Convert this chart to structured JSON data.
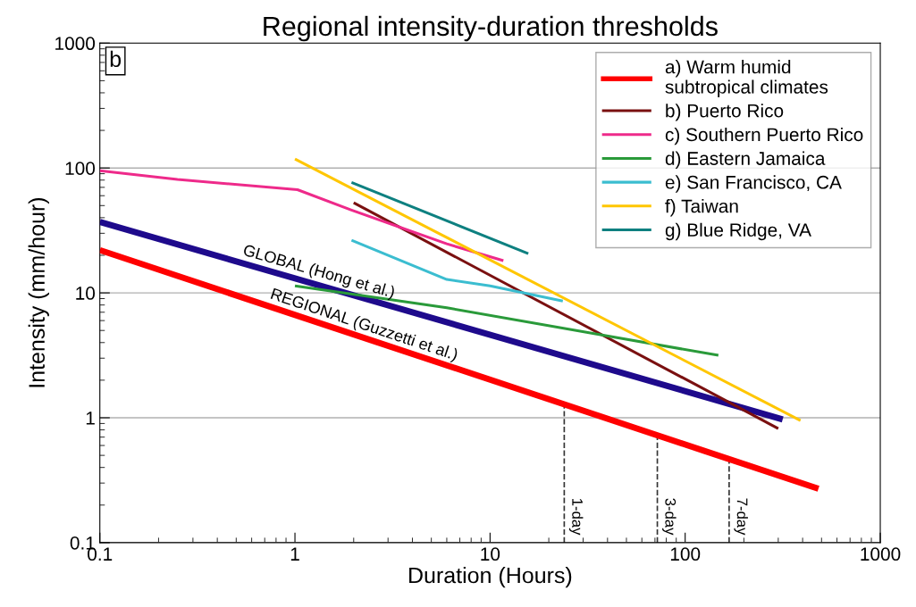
{
  "chart_data": {
    "type": "line",
    "title": "Regional intensity-duration thresholds",
    "xlabel": "Duration (Hours)",
    "ylabel": "Intensity (mm/hour)",
    "log": "xy",
    "xlim": [
      0.1,
      1000
    ],
    "ylim": [
      0.1,
      1000
    ],
    "xticks": [
      0.1,
      1,
      10,
      100,
      1000
    ],
    "yticks": [
      0.1,
      1,
      10,
      100,
      1000
    ],
    "grid": "y",
    "legend": "top right",
    "marker": "none",
    "line_style": "solid",
    "series": [
      {
        "name": "a) Warm humid\nsubtropical climates",
        "color": "#ff0000",
        "x": [
          0.1,
          482
        ],
        "values": [
          22,
          0.27
        ]
      },
      {
        "color": "#1e0a8c",
        "x": [
          0.1,
          316
        ],
        "values": [
          37,
          0.97
        ]
      },
      {
        "name": "b) Puerto Rico",
        "color": "#7a1010",
        "x": [
          2,
          300
        ],
        "values": [
          52.7,
          0.82
        ]
      },
      {
        "name": "c) Southern Puerto Rico",
        "color": "#ee2a8a",
        "x": [
          0.1,
          0.25,
          1.03,
          1.95,
          6.0,
          11.7
        ],
        "values": [
          95,
          81,
          67,
          46,
          24.7,
          18.1
        ]
      },
      {
        "name": "d) Eastern Jamaica",
        "color": "#2a9a3a",
        "x": [
          1,
          6,
          37.4,
          148
        ],
        "values": [
          11.4,
          7.6,
          4.6,
          3.16
        ]
      },
      {
        "name": "e) San Francisco, CA",
        "color": "#3bbdd0",
        "x": [
          1.95,
          6,
          10,
          23.6
        ],
        "values": [
          26.4,
          12.8,
          11.4,
          8.6
        ]
      },
      {
        "name": "f) Taiwan",
        "color": "#ffc600",
        "x": [
          1,
          390
        ],
        "values": [
          118,
          0.95
        ]
      },
      {
        "name": "g) Blue Ridge, VA",
        "color": "#0e8080",
        "x": [
          1.95,
          15.7
        ],
        "values": [
          76.6,
          20.6
        ]
      }
    ],
    "ref_lines": [
      {
        "axis": "x",
        "value": 24,
        "label": "1-day",
        "line_style": "dashed",
        "color": "#333333"
      },
      {
        "axis": "x",
        "value": 72,
        "label": "3-day",
        "line_style": "dashed",
        "color": "#333333"
      },
      {
        "axis": "x",
        "value": 168,
        "label": "7-day",
        "line_style": "dashed",
        "color": "#333333"
      }
    ],
    "annotations": [
      "b",
      {
        "text": "GLOBAL (Hong et al.)",
        "x": 0.53,
        "y": 17.4
      },
      {
        "text": "REGIONAL (Guzzetti et al.)",
        "x": 0.73,
        "y": 7.8
      }
    ]
  }
}
